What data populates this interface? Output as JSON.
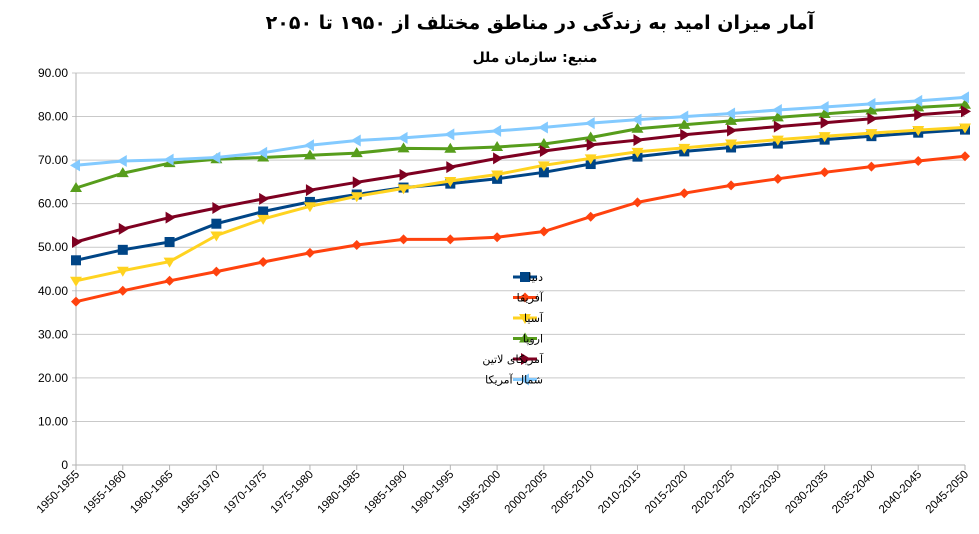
{
  "chart_data": {
    "type": "line",
    "title": "آمار میزان امید به زندگی در مناطق مختلف از ۱۹۵۰ تا ۲۰۵۰",
    "subtitle": "منبع: سازمان ملل",
    "xlabel": "",
    "ylabel": "",
    "ylim": [
      0,
      90
    ],
    "yticks": [
      "0",
      "10.00",
      "20.00",
      "30.00",
      "40.00",
      "50.00",
      "60.00",
      "70.00",
      "80.00",
      "90.00"
    ],
    "categories": [
      "1950-1955",
      "1955-1960",
      "1960-1965",
      "1965-1970",
      "1970-1975",
      "1975-1980",
      "1980-1985",
      "1985-1990",
      "1990-1995",
      "1995-2000",
      "2000-2005",
      "2005-2010",
      "2010-2015",
      "2015-2020",
      "2020-2025",
      "2025-2030",
      "2030-2035",
      "2035-2040",
      "2040-2045",
      "2045-2050"
    ],
    "grid": true,
    "legend_position": "center",
    "series": [
      {
        "name": "دنیا",
        "color": "#004586",
        "marker": "square",
        "values": [
          47.0,
          49.4,
          51.2,
          55.4,
          58.2,
          60.4,
          62.1,
          63.7,
          64.6,
          65.7,
          67.2,
          69.1,
          70.8,
          72.0,
          72.9,
          73.8,
          74.7,
          75.5,
          76.3,
          77.0
        ]
      },
      {
        "name": "آفریقا",
        "color": "#ff420e",
        "marker": "diamond",
        "values": [
          37.5,
          40.0,
          42.3,
          44.4,
          46.6,
          48.7,
          50.5,
          51.8,
          51.8,
          52.3,
          53.6,
          57.0,
          60.3,
          62.4,
          64.2,
          65.7,
          67.2,
          68.5,
          69.8,
          70.9
        ]
      },
      {
        "name": "آسیا",
        "color": "#ffd320",
        "marker": "triangle-down",
        "values": [
          42.3,
          44.6,
          46.7,
          52.7,
          56.5,
          59.4,
          61.7,
          63.5,
          65.2,
          66.7,
          68.8,
          70.4,
          71.9,
          72.8,
          73.8,
          74.7,
          75.5,
          76.2,
          76.9,
          77.5
        ]
      },
      {
        "name": "اروپا",
        "color": "#579d1c",
        "marker": "triangle-up",
        "values": [
          63.6,
          67.0,
          69.3,
          70.2,
          70.6,
          71.1,
          71.6,
          72.7,
          72.6,
          73.0,
          73.7,
          75.2,
          77.2,
          78.1,
          79.0,
          79.8,
          80.6,
          81.4,
          82.1,
          82.7
        ]
      },
      {
        "name": "آمریکای لاتین",
        "color": "#7e0021",
        "marker": "triangle-right",
        "values": [
          51.2,
          54.2,
          56.8,
          59.0,
          61.1,
          63.1,
          64.9,
          66.6,
          68.4,
          70.4,
          72.1,
          73.5,
          74.6,
          75.8,
          76.8,
          77.7,
          78.6,
          79.5,
          80.4,
          81.2
        ]
      },
      {
        "name": "شمال آمریکا",
        "color": "#83caff",
        "marker": "triangle-left",
        "values": [
          68.8,
          69.8,
          70.1,
          70.6,
          71.7,
          73.4,
          74.5,
          75.1,
          75.9,
          76.7,
          77.5,
          78.5,
          79.3,
          80.0,
          80.7,
          81.5,
          82.2,
          82.9,
          83.6,
          84.4
        ]
      }
    ]
  }
}
